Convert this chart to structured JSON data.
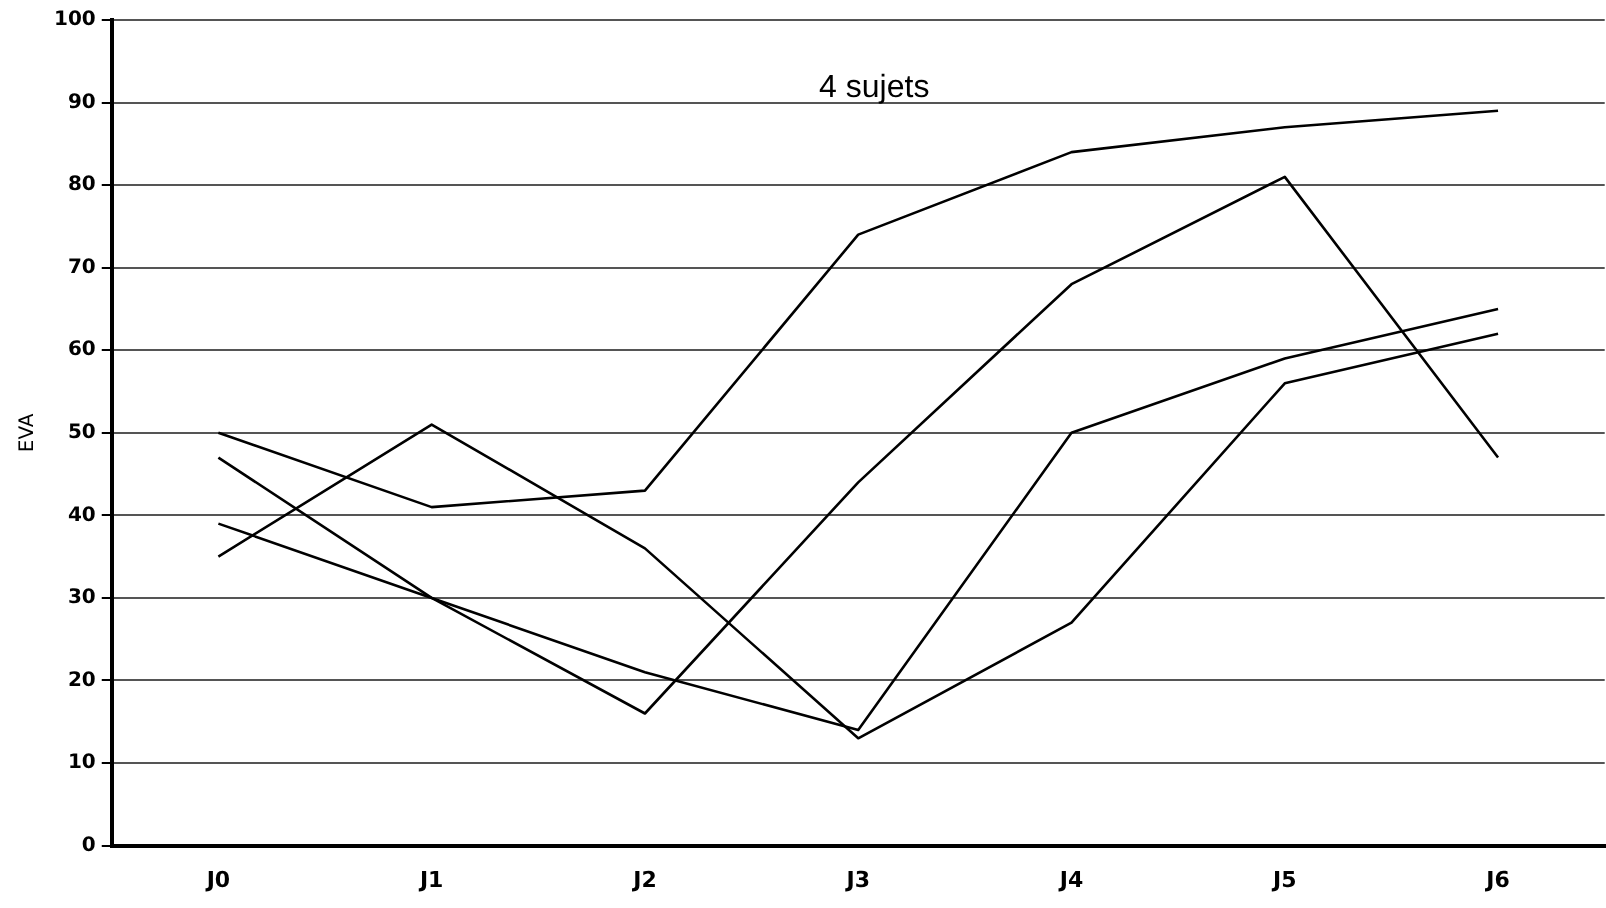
{
  "chart_data": {
    "type": "line",
    "title": "4 sujets",
    "ylabel": "EVA",
    "categories": [
      "J0",
      "J1",
      "J2",
      "J3",
      "J4",
      "J5",
      "J6"
    ],
    "series": [
      {
        "color": "#000000",
        "values": [
          35,
          51,
          36,
          13,
          27,
          56,
          62
        ]
      },
      {
        "color": "#000000",
        "values": [
          50,
          41,
          43,
          74,
          84,
          87,
          89
        ]
      },
      {
        "color": "#000000",
        "values": [
          47,
          30,
          16,
          44,
          68,
          81,
          47
        ]
      },
      {
        "color": "#000000",
        "values": [
          39,
          30,
          21,
          14,
          50,
          59,
          65
        ]
      }
    ],
    "ylim": [
      0,
      100
    ],
    "yticks": [
      0,
      10,
      20,
      30,
      40,
      50,
      60,
      70,
      80,
      90,
      100
    ],
    "grid": "y",
    "legend": false,
    "marker": "none",
    "line_style": "solid"
  }
}
